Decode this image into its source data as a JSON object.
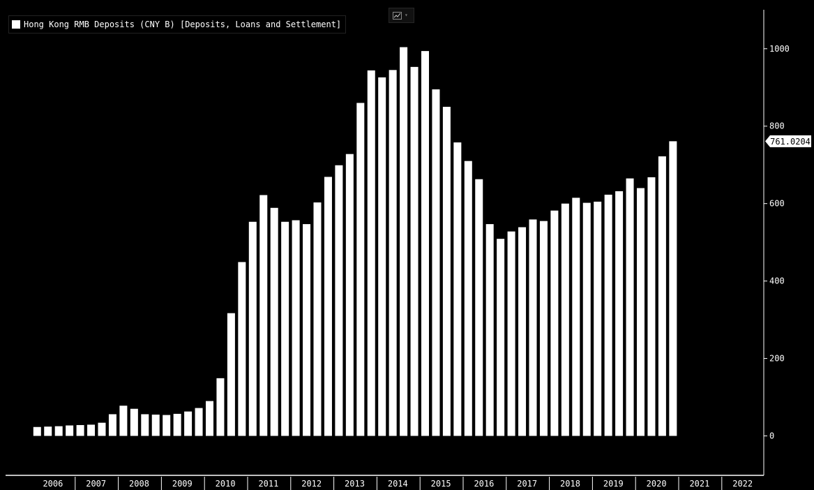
{
  "legend": {
    "label": "Hong Kong RMB Deposits (CNY B) [Deposits, Loans and Settlement]"
  },
  "toolbar": {
    "chart_type_icon": "line-chart-icon",
    "chart_type_caret": "▾"
  },
  "chart_data": {
    "type": "bar",
    "title": "Hong Kong RMB Deposits (CNY B) [Deposits, Loans and Settlement]",
    "series": [
      {
        "name": "Hong Kong RMB Deposits (CNY B) [Deposits, Loans and Settlement]",
        "x": [
          "2006-Q1",
          "2006-Q2",
          "2006-Q3",
          "2006-Q4",
          "2007-Q1",
          "2007-Q2",
          "2007-Q3",
          "2007-Q4",
          "2008-Q1",
          "2008-Q2",
          "2008-Q3",
          "2008-Q4",
          "2009-Q1",
          "2009-Q2",
          "2009-Q3",
          "2009-Q4",
          "2010-Q1",
          "2010-Q2",
          "2010-Q3",
          "2010-Q4",
          "2011-Q1",
          "2011-Q2",
          "2011-Q3",
          "2011-Q4",
          "2012-Q1",
          "2012-Q2",
          "2012-Q3",
          "2012-Q4",
          "2013-Q1",
          "2013-Q2",
          "2013-Q3",
          "2013-Q4",
          "2014-Q1",
          "2014-Q2",
          "2014-Q3",
          "2014-Q4",
          "2015-Q1",
          "2015-Q2",
          "2015-Q3",
          "2015-Q4",
          "2016-Q1",
          "2016-Q2",
          "2016-Q3",
          "2016-Q4",
          "2017-Q1",
          "2017-Q2",
          "2017-Q3",
          "2017-Q4",
          "2018-Q1",
          "2018-Q2",
          "2018-Q3",
          "2018-Q4",
          "2019-Q1",
          "2019-Q2",
          "2019-Q3",
          "2019-Q4",
          "2020-Q1",
          "2020-Q2",
          "2020-Q3",
          "2020-Q4"
        ],
        "values": [
          23,
          24,
          25,
          27,
          28,
          29,
          34,
          56,
          78,
          70,
          56,
          55,
          54,
          57,
          63,
          72,
          90,
          149,
          317,
          449,
          553,
          622,
          589,
          553,
          557,
          547,
          603,
          669,
          699,
          728,
          860,
          944,
          926,
          945,
          1004,
          953,
          994,
          895,
          850,
          758,
          710,
          663,
          547,
          509,
          528,
          539,
          559,
          555,
          582,
          600,
          615,
          602,
          605,
          623,
          632,
          665,
          640,
          668,
          722,
          761
        ]
      }
    ],
    "x_axis": {
      "tick_labels": [
        "2006",
        "2007",
        "2008",
        "2009",
        "2010",
        "2011",
        "2012",
        "2013",
        "2014",
        "2015",
        "2016",
        "2017",
        "2018",
        "2019",
        "2020",
        "2021",
        "2022"
      ]
    },
    "y_axis": {
      "position": "right",
      "tick_values": [
        0,
        200,
        400,
        600,
        800,
        1000
      ],
      "tick_labels": [
        "0",
        "200",
        "400",
        "600",
        "800",
        "1000"
      ],
      "range": [
        -120,
        1110
      ]
    },
    "last_value_label": "761.0204",
    "grid": false,
    "legend_position": "top-left",
    "colors": {
      "background": "#000000",
      "bar": "#ffffff",
      "axis": "#ffffff",
      "text": "#ffffff"
    }
  }
}
